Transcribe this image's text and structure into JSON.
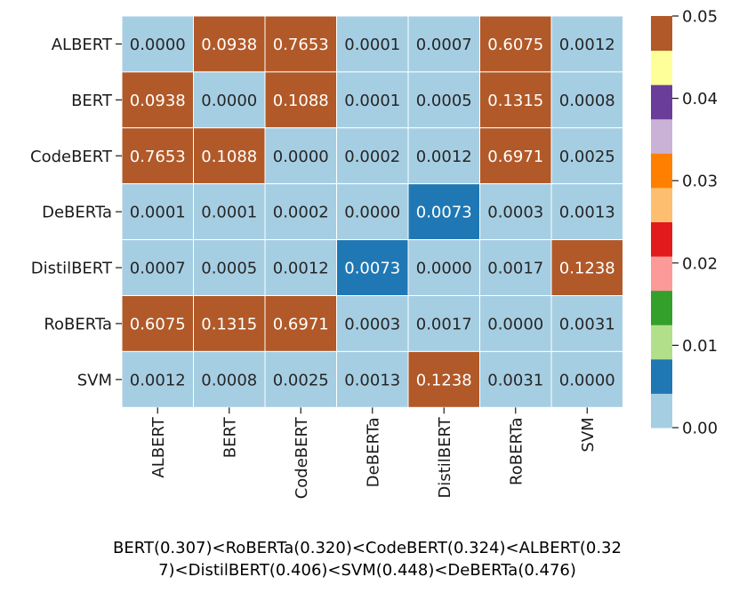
{
  "chart_data": {
    "type": "heatmap",
    "rows": [
      "ALBERT",
      "BERT",
      "CodeBERT",
      "DeBERTa",
      "DistilBERT",
      "RoBERTa",
      "SVM"
    ],
    "columns": [
      "ALBERT",
      "BERT",
      "CodeBERT",
      "DeBERTa",
      "DistilBERT",
      "RoBERTa",
      "SVM"
    ],
    "values": [
      [
        "0.0000",
        "0.0938",
        "0.7653",
        "0.0001",
        "0.0007",
        "0.6075",
        "0.0012"
      ],
      [
        "0.0938",
        "0.0000",
        "0.1088",
        "0.0001",
        "0.0005",
        "0.1315",
        "0.0008"
      ],
      [
        "0.7653",
        "0.1088",
        "0.0000",
        "0.0002",
        "0.0012",
        "0.6971",
        "0.0025"
      ],
      [
        "0.0001",
        "0.0001",
        "0.0002",
        "0.0000",
        "0.0073",
        "0.0003",
        "0.0013"
      ],
      [
        "0.0007",
        "0.0005",
        "0.0012",
        "0.0073",
        "0.0000",
        "0.0017",
        "0.1238"
      ],
      [
        "0.6075",
        "0.1315",
        "0.6971",
        "0.0003",
        "0.0017",
        "0.0000",
        "0.0031"
      ],
      [
        "0.0012",
        "0.0008",
        "0.0025",
        "0.0013",
        "0.1238",
        "0.0031",
        "0.0000"
      ]
    ],
    "colorbar": {
      "min": 0.0,
      "max": 0.05,
      "ticks": [
        "0.00",
        "0.01",
        "0.02",
        "0.03",
        "0.04",
        "0.05"
      ],
      "colors": [
        "#a6cee3",
        "#1f78b4",
        "#b2df8a",
        "#33a02c",
        "#fb9a99",
        "#e31a1c",
        "#fdbf6f",
        "#ff7f00",
        "#cab2d6",
        "#6a3d9a",
        "#ffff99",
        "#b15928"
      ]
    },
    "grid": true,
    "xlabel": "",
    "ylabel": "",
    "footnote": [
      "BERT(0.307)<RoBERTa(0.320)<CodeBERT(0.324)<ALBERT(0.32",
      "7)<DistilBERT(0.406)<SVM(0.448)<DeBERTa(0.476)"
    ]
  }
}
